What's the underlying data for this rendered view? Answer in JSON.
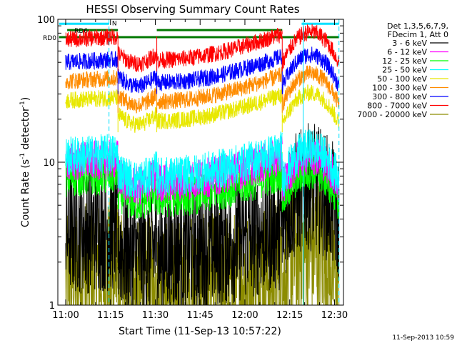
{
  "chart_data": {
    "type": "line",
    "title": "HESSI Observing Summary Count Rates",
    "xlabel": "Start Time (11-Sep-13 10:57:22)",
    "ylabel_main": "Count Rate (s",
    "ylabel_sup1": "-1",
    "ylabel_mid": " detector",
    "ylabel_sup2": "-1",
    "ylabel_end": ")",
    "yscale": "log",
    "ylim": [
      1,
      100
    ],
    "xlim_minutes": [
      657.37,
      753
    ],
    "x_ticks": [
      {
        "label": "11:00",
        "minute": 660
      },
      {
        "label": "11:15",
        "minute": 675
      },
      {
        "label": "11:30",
        "minute": 690
      },
      {
        "label": "11:45",
        "minute": 705
      },
      {
        "label": "12:00",
        "minute": 720
      },
      {
        "label": "12:15",
        "minute": 735
      },
      {
        "label": "12:30",
        "minute": 750
      }
    ],
    "y_tick_labels": [
      {
        "label": "1",
        "value": 1
      },
      {
        "label": "10",
        "value": 10
      },
      {
        "label": "100",
        "value": 100
      }
    ],
    "legend_header": [
      "Det 1,3,5,6,7,9,",
      "FDecim 1, Att 0"
    ],
    "legend_position": "right",
    "flags": [
      {
        "label": "N",
        "color": "#00e0ff",
        "segments": [
          [
            657.8,
            674.5
          ],
          [
            739,
            751.5
          ]
        ],
        "value": 93
      },
      {
        "label": "RD0",
        "color": "#007800",
        "segments": [
          [
            657.8,
            751.5
          ]
        ],
        "value": 75
      },
      {
        "label": "RD6",
        "color": "#007800",
        "segments": [
          [
            660.5,
            677.5
          ],
          [
            690.5,
            732.5
          ]
        ],
        "value": 84
      }
    ],
    "vertical_markers": [
      {
        "minute": 674.5,
        "color": "#00e0ff",
        "style": "dashed"
      },
      {
        "minute": 739.5,
        "color": "#00e0ff",
        "style": "solid"
      },
      {
        "minute": 751.5,
        "color": "#00e0ff",
        "style": "dashed"
      }
    ],
    "series": [
      {
        "name": "3 - 6 keV",
        "color": "#000000",
        "level": 3.3
      },
      {
        "name": "6 - 12 keV",
        "color": "#ff00ff",
        "level": 10.0
      },
      {
        "name": "12 - 25 keV",
        "color": "#00ff00",
        "level": 7.8
      },
      {
        "name": "25 - 50 keV",
        "color": "#00ffff",
        "level": 11.0
      },
      {
        "name": "50 - 100 keV",
        "color": "#e8e800",
        "level": 27.0
      },
      {
        "name": "100 - 300 keV",
        "color": "#ff8c00",
        "level": 37.0
      },
      {
        "name": "300 - 800 keV",
        "color": "#0000ff",
        "level": 50.0
      },
      {
        "name": "800 - 7000 keV",
        "color": "#ff0000",
        "level": 72.0
      },
      {
        "name": "7000 - 20000 keV",
        "color": "#8c8c00",
        "level": 1.6
      }
    ],
    "segments": [
      {
        "start": 660.0,
        "end": 677.5,
        "shape": "flat"
      },
      {
        "start": 677.5,
        "end": 690.5,
        "shape": "dip"
      },
      {
        "start": 690.5,
        "end": 732.5,
        "shape": "rise"
      },
      {
        "start": 732.5,
        "end": 751.5,
        "shape": "bump"
      }
    ]
  },
  "timestamp": "11-Sep-2013 10:59"
}
